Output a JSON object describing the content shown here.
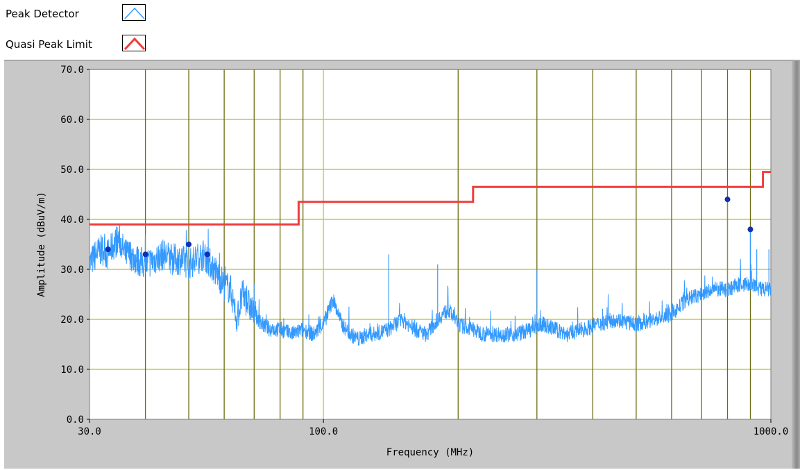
{
  "chart_data": {
    "type": "line",
    "xlabel": "Frequency (MHz)",
    "ylabel": "Amplitude (dBuV/m)",
    "x_scale": "log",
    "xlim": [
      30,
      1000
    ],
    "ylim": [
      0,
      70
    ],
    "x_tick_labels": [
      "30.0",
      "100.0",
      "1000.0"
    ],
    "x_ticks": [
      30,
      100,
      1000
    ],
    "x_gridlines": [
      40,
      50,
      60,
      70,
      80,
      90,
      100,
      200,
      300,
      400,
      500,
      600,
      700,
      800,
      900
    ],
    "y_ticks": [
      0,
      10,
      20,
      30,
      40,
      50,
      60,
      70
    ],
    "y_tick_labels": [
      "0.0",
      "10.0",
      "20.0",
      "30.0",
      "40.0",
      "50.0",
      "60.0",
      "70.0"
    ],
    "grid": true,
    "legend_position": "top-left",
    "colors": {
      "peak_detector": "#3399ff",
      "quasi_peak_limit": "#f03c3c",
      "markers": "#1030b0",
      "grid_major": "#6b6b10",
      "grid_decade": "#c8c83a",
      "plot_background": "#ffffff",
      "panel": "#c8c8c8"
    },
    "series": [
      {
        "name": "Peak Detector",
        "style": "noisy-line",
        "x": [
          30,
          31,
          32,
          33,
          34,
          35,
          36,
          37,
          38,
          40,
          42,
          44,
          46,
          48,
          50,
          52,
          54,
          56,
          58,
          60,
          62,
          64,
          66,
          68,
          70,
          73,
          76,
          80,
          85,
          90,
          95,
          100,
          105,
          110,
          115,
          120,
          125,
          130,
          140,
          150,
          160,
          170,
          180,
          190,
          200,
          215,
          230,
          250,
          270,
          290,
          310,
          330,
          350,
          380,
          410,
          450,
          500,
          550,
          600,
          650,
          700,
          750,
          800,
          850,
          900,
          950,
          1000
        ],
        "y": [
          31,
          33,
          34,
          33,
          35,
          36,
          33,
          33,
          32,
          31,
          32,
          33,
          32,
          32,
          31,
          32,
          33,
          31,
          29,
          27,
          26,
          20,
          25,
          23,
          21,
          19,
          18,
          18,
          17,
          18,
          17,
          19,
          24,
          19,
          17,
          16,
          17,
          17,
          18,
          20,
          18,
          17,
          20,
          22,
          19,
          18,
          17,
          17,
          17,
          18,
          19,
          18,
          17,
          18,
          19,
          20,
          19,
          20,
          21,
          24,
          25,
          26,
          26,
          27,
          27,
          26,
          26
        ]
      },
      {
        "name": "Quasi Peak Limit",
        "style": "step",
        "x": [
          30,
          88,
          88,
          216,
          216,
          960,
          960,
          1000
        ],
        "y": [
          39,
          39,
          43.5,
          43.5,
          46.5,
          46.5,
          49.5,
          49.5
        ]
      }
    ],
    "markers": [
      {
        "x": 33,
        "y": 34
      },
      {
        "x": 40,
        "y": 33
      },
      {
        "x": 50,
        "y": 35
      },
      {
        "x": 55,
        "y": 33
      },
      {
        "x": 800,
        "y": 44
      },
      {
        "x": 900,
        "y": 38
      }
    ],
    "spikes": [
      {
        "x": 800,
        "y": 44
      },
      {
        "x": 900,
        "y": 38
      },
      {
        "x": 930,
        "y": 34
      },
      {
        "x": 140,
        "y": 33
      },
      {
        "x": 180,
        "y": 31
      },
      {
        "x": 300,
        "y": 30
      },
      {
        "x": 990,
        "y": 34
      }
    ]
  }
}
